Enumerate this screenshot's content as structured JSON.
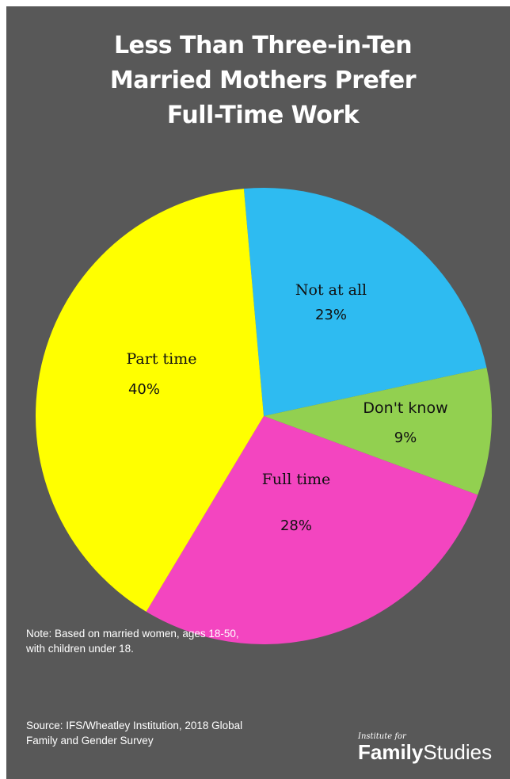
{
  "title_lines": [
    "Less Than Three-in-Ten",
    "Married Mothers Prefer",
    "Full-Time Work"
  ],
  "chart_data": {
    "type": "pie",
    "slices": [
      {
        "label": "Not at all",
        "value": 23,
        "value_label": "23%",
        "color": "#2EBBF1"
      },
      {
        "label": "Don't know",
        "value": 9,
        "value_label": "9%",
        "color": "#92D050"
      },
      {
        "label": "Full time",
        "value": 28,
        "value_label": "28%",
        "color": "#F345C0"
      },
      {
        "label": "Part time",
        "value": 40,
        "value_label": "40%",
        "color": "#FFFF00"
      }
    ]
  },
  "note": {
    "line1": "Note: Based on married women, ages 18-50,",
    "line2": "with children under 18."
  },
  "source": {
    "line1": "Source: IFS/Wheatley Institution, 2018 Global",
    "line2": "Family and Gender Survey"
  },
  "logo": {
    "top": "Institute for",
    "bold": "Family",
    "light": "Studies"
  }
}
